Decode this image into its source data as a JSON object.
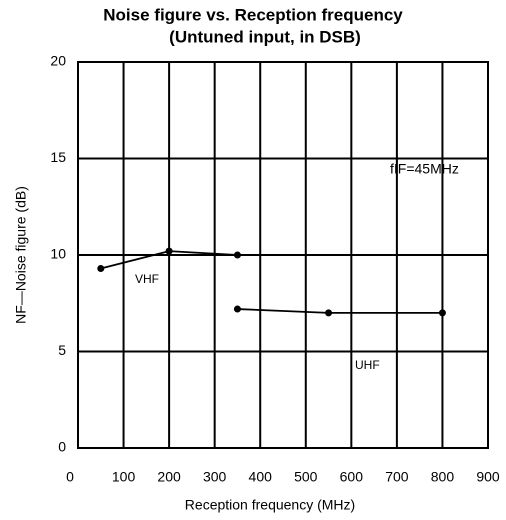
{
  "chart_data": {
    "type": "line",
    "title": "Noise figure vs. Reception frequency",
    "subtitle": "(Untuned input, in DSB)",
    "xlabel": "Reception frequency   (MHz)",
    "ylabel": "NF—Noise figure   (dB)",
    "annotations": [
      "fIF=45MHz"
    ],
    "xlim": [
      0,
      900
    ],
    "xticks": [
      0,
      100,
      200,
      300,
      400,
      500,
      600,
      700,
      800,
      900
    ],
    "ylim": [
      0,
      20
    ],
    "yticks": [
      0,
      5,
      10,
      15,
      20
    ],
    "grid": true,
    "series": [
      {
        "name": "VHF",
        "color": "#000000",
        "x": [
          50,
          200,
          350
        ],
        "values": [
          9.3,
          10.2,
          10.0
        ]
      },
      {
        "name": "UHF",
        "color": "#000000",
        "x": [
          350,
          550,
          800
        ],
        "values": [
          7.2,
          7.0,
          7.0
        ]
      }
    ]
  }
}
